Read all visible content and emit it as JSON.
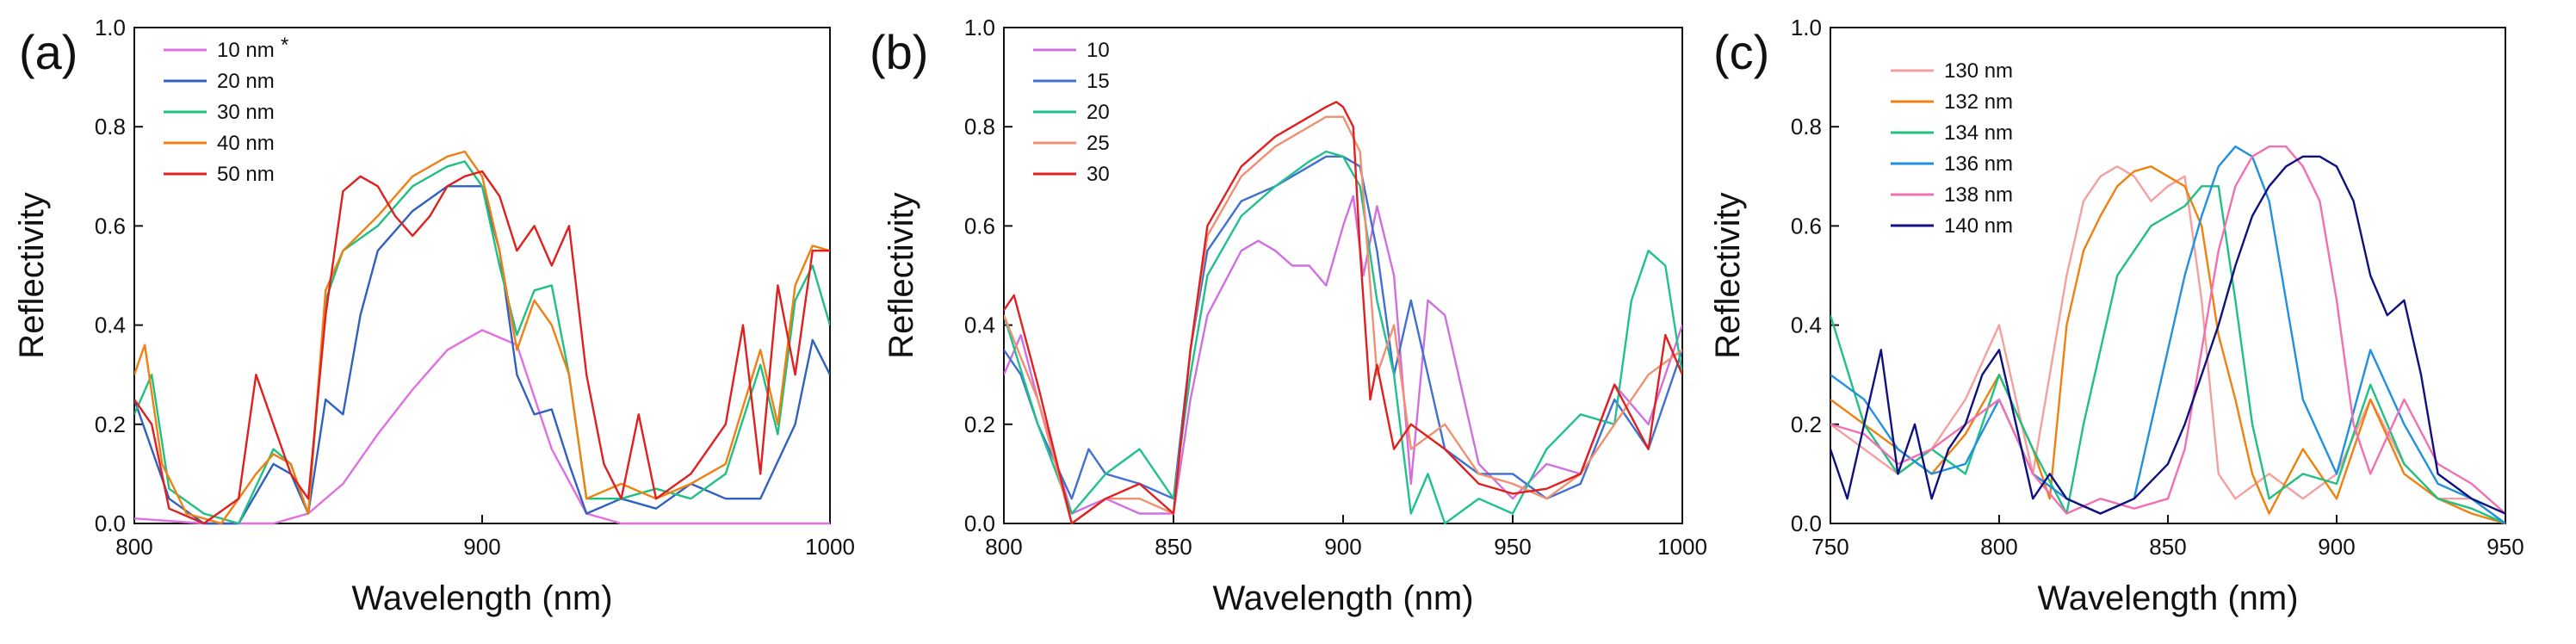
{
  "chart_data": [
    {
      "type": "line",
      "panel": "(a)",
      "xlabel": "Wavelength (nm)",
      "ylabel": "Reflectivity",
      "xlim": [
        800,
        1000
      ],
      "ylim": [
        0,
        1.0
      ],
      "xticks": [
        "800",
        "900",
        "1000"
      ],
      "xtick_values": [
        800,
        900,
        1000
      ],
      "yticks": [
        "0.0",
        "0.2",
        "0.4",
        "0.6",
        "0.8",
        "1.0"
      ],
      "ytick_values": [
        0,
        0.2,
        0.4,
        0.6,
        0.8,
        1.0
      ],
      "legend_position": "top-left",
      "series": [
        {
          "name": "10 nm",
          "marker": "*",
          "color": "#e070e0",
          "x": [
            800,
            820,
            840,
            850,
            860,
            870,
            880,
            890,
            900,
            910,
            920,
            930,
            940,
            960,
            980,
            1000
          ],
          "y": [
            0.01,
            0.0,
            0.0,
            0.02,
            0.08,
            0.18,
            0.27,
            0.35,
            0.39,
            0.36,
            0.15,
            0.02,
            0.0,
            0.0,
            0.0,
            0.0
          ]
        },
        {
          "name": "20 nm",
          "color": "#3060c0",
          "x": [
            800,
            810,
            820,
            830,
            840,
            845,
            850,
            855,
            860,
            865,
            870,
            880,
            890,
            900,
            905,
            910,
            915,
            920,
            925,
            930,
            940,
            950,
            960,
            970,
            980,
            990,
            995,
            1000
          ],
          "y": [
            0.25,
            0.05,
            0.0,
            0.0,
            0.12,
            0.1,
            0.02,
            0.25,
            0.22,
            0.42,
            0.55,
            0.63,
            0.68,
            0.68,
            0.55,
            0.3,
            0.22,
            0.23,
            0.12,
            0.02,
            0.05,
            0.03,
            0.08,
            0.05,
            0.05,
            0.2,
            0.37,
            0.3
          ]
        },
        {
          "name": "30 nm",
          "color": "#20c080",
          "x": [
            800,
            805,
            810,
            820,
            830,
            840,
            845,
            850,
            855,
            860,
            870,
            880,
            890,
            895,
            900,
            905,
            910,
            915,
            920,
            925,
            930,
            940,
            950,
            960,
            970,
            980,
            985,
            990,
            995,
            1000
          ],
          "y": [
            0.22,
            0.3,
            0.07,
            0.02,
            0.0,
            0.15,
            0.12,
            0.02,
            0.45,
            0.55,
            0.6,
            0.68,
            0.72,
            0.73,
            0.68,
            0.52,
            0.38,
            0.47,
            0.48,
            0.3,
            0.05,
            0.05,
            0.07,
            0.05,
            0.1,
            0.32,
            0.18,
            0.45,
            0.52,
            0.4
          ]
        },
        {
          "name": "40 nm",
          "color": "#f08010",
          "x": [
            800,
            803,
            808,
            815,
            825,
            835,
            840,
            845,
            850,
            855,
            860,
            870,
            880,
            890,
            895,
            900,
            905,
            910,
            915,
            920,
            925,
            930,
            940,
            950,
            960,
            970,
            980,
            985,
            990,
            995,
            1000
          ],
          "y": [
            0.3,
            0.36,
            0.12,
            0.02,
            0.0,
            0.1,
            0.14,
            0.12,
            0.02,
            0.47,
            0.55,
            0.62,
            0.7,
            0.74,
            0.75,
            0.7,
            0.55,
            0.35,
            0.45,
            0.4,
            0.3,
            0.05,
            0.08,
            0.05,
            0.08,
            0.12,
            0.35,
            0.2,
            0.48,
            0.56,
            0.55
          ]
        },
        {
          "name": "50 nm",
          "color": "#e02020",
          "x": [
            800,
            805,
            810,
            820,
            830,
            835,
            840,
            845,
            850,
            855,
            860,
            865,
            870,
            875,
            880,
            885,
            890,
            895,
            900,
            905,
            910,
            915,
            920,
            925,
            930,
            935,
            940,
            945,
            950,
            960,
            970,
            975,
            980,
            985,
            990,
            995,
            1000
          ],
          "y": [
            0.25,
            0.2,
            0.03,
            0.0,
            0.05,
            0.3,
            0.2,
            0.1,
            0.05,
            0.42,
            0.67,
            0.7,
            0.68,
            0.62,
            0.58,
            0.62,
            0.68,
            0.7,
            0.71,
            0.66,
            0.55,
            0.6,
            0.52,
            0.6,
            0.3,
            0.12,
            0.05,
            0.22,
            0.05,
            0.1,
            0.2,
            0.4,
            0.1,
            0.48,
            0.3,
            0.55,
            0.55
          ]
        }
      ]
    },
    {
      "type": "line",
      "panel": "(b)",
      "xlabel": "Wavelength (nm)",
      "ylabel": "Reflectivity",
      "xlim": [
        800,
        1000
      ],
      "ylim": [
        0,
        1.0
      ],
      "xticks": [
        "800",
        "850",
        "900",
        "950",
        "1000"
      ],
      "xtick_values": [
        800,
        850,
        900,
        950,
        1000
      ],
      "yticks": [
        "0.0",
        "0.2",
        "0.4",
        "0.6",
        "0.8",
        "1.0"
      ],
      "ytick_values": [
        0,
        0.2,
        0.4,
        0.6,
        0.8,
        1.0
      ],
      "legend_position": "top-left",
      "series": [
        {
          "name": "10",
          "color": "#d070e0",
          "x": [
            800,
            805,
            810,
            820,
            830,
            840,
            850,
            855,
            860,
            870,
            875,
            880,
            885,
            890,
            895,
            900,
            903,
            906,
            910,
            915,
            920,
            925,
            930,
            940,
            950,
            960,
            970,
            980,
            990,
            1000
          ],
          "y": [
            0.3,
            0.38,
            0.25,
            0.02,
            0.05,
            0.02,
            0.02,
            0.25,
            0.42,
            0.55,
            0.57,
            0.55,
            0.52,
            0.52,
            0.48,
            0.6,
            0.66,
            0.5,
            0.64,
            0.5,
            0.08,
            0.45,
            0.42,
            0.12,
            0.05,
            0.12,
            0.1,
            0.28,
            0.2,
            0.4
          ]
        },
        {
          "name": "15",
          "color": "#4070d0",
          "x": [
            800,
            805,
            810,
            820,
            825,
            830,
            840,
            850,
            855,
            860,
            870,
            880,
            890,
            895,
            900,
            905,
            910,
            915,
            920,
            930,
            940,
            950,
            960,
            970,
            980,
            990,
            1000
          ],
          "y": [
            0.35,
            0.3,
            0.2,
            0.05,
            0.15,
            0.1,
            0.08,
            0.05,
            0.35,
            0.55,
            0.65,
            0.68,
            0.72,
            0.74,
            0.74,
            0.72,
            0.55,
            0.3,
            0.45,
            0.15,
            0.1,
            0.1,
            0.05,
            0.08,
            0.25,
            0.15,
            0.35
          ]
        },
        {
          "name": "20",
          "color": "#20c090",
          "x": [
            800,
            810,
            820,
            830,
            840,
            850,
            855,
            860,
            870,
            880,
            890,
            895,
            900,
            905,
            910,
            915,
            920,
            925,
            930,
            940,
            950,
            960,
            970,
            980,
            985,
            990,
            995,
            1000
          ],
          "y": [
            0.42,
            0.2,
            0.02,
            0.1,
            0.15,
            0.05,
            0.3,
            0.5,
            0.62,
            0.68,
            0.73,
            0.75,
            0.74,
            0.68,
            0.45,
            0.3,
            0.02,
            0.1,
            0.0,
            0.05,
            0.02,
            0.15,
            0.22,
            0.2,
            0.45,
            0.55,
            0.52,
            0.3
          ]
        },
        {
          "name": "25",
          "color": "#f09070",
          "x": [
            800,
            810,
            820,
            830,
            840,
            850,
            855,
            860,
            870,
            880,
            890,
            895,
            900,
            905,
            910,
            915,
            920,
            930,
            940,
            950,
            960,
            970,
            980,
            990,
            1000
          ],
          "y": [
            0.42,
            0.25,
            0.0,
            0.05,
            0.05,
            0.02,
            0.35,
            0.58,
            0.7,
            0.76,
            0.8,
            0.82,
            0.82,
            0.75,
            0.3,
            0.4,
            0.15,
            0.2,
            0.1,
            0.08,
            0.05,
            0.1,
            0.2,
            0.3,
            0.35
          ]
        },
        {
          "name": "30",
          "color": "#e02020",
          "x": [
            800,
            803,
            810,
            820,
            830,
            840,
            850,
            855,
            860,
            870,
            880,
            890,
            895,
            898,
            900,
            903,
            905,
            908,
            910,
            915,
            920,
            930,
            940,
            950,
            960,
            970,
            980,
            990,
            995,
            1000
          ],
          "y": [
            0.43,
            0.46,
            0.28,
            0.0,
            0.05,
            0.08,
            0.02,
            0.35,
            0.6,
            0.72,
            0.78,
            0.82,
            0.84,
            0.85,
            0.84,
            0.8,
            0.55,
            0.25,
            0.32,
            0.15,
            0.2,
            0.15,
            0.08,
            0.06,
            0.07,
            0.1,
            0.28,
            0.15,
            0.38,
            0.3
          ]
        }
      ]
    },
    {
      "type": "line",
      "panel": "(c)",
      "xlabel": "Wavelength (nm)",
      "ylabel": "Reflectivity",
      "xlim": [
        750,
        950
      ],
      "ylim": [
        0,
        1.0
      ],
      "xticks": [
        "750",
        "800",
        "850",
        "900",
        "950"
      ],
      "xtick_values": [
        750,
        800,
        850,
        900,
        950
      ],
      "yticks": [
        "0.0",
        "0.2",
        "0.4",
        "0.6",
        "0.8",
        "1.0"
      ],
      "ytick_values": [
        0,
        0.2,
        0.4,
        0.6,
        0.8,
        1.0
      ],
      "legend_position": "top-left",
      "series": [
        {
          "name": "130 nm",
          "color": "#f4a0a0",
          "x": [
            750,
            760,
            770,
            780,
            790,
            800,
            810,
            815,
            820,
            825,
            830,
            835,
            840,
            845,
            850,
            855,
            860,
            865,
            870,
            880,
            890,
            900,
            910,
            920,
            930,
            940,
            950
          ],
          "y": [
            0.2,
            0.15,
            0.1,
            0.15,
            0.25,
            0.4,
            0.1,
            0.3,
            0.5,
            0.65,
            0.7,
            0.72,
            0.7,
            0.65,
            0.68,
            0.7,
            0.45,
            0.1,
            0.05,
            0.1,
            0.05,
            0.1,
            0.25,
            0.12,
            0.05,
            0.05,
            0.0
          ]
        },
        {
          "name": "132 nm",
          "color": "#f08010",
          "x": [
            750,
            760,
            770,
            780,
            790,
            800,
            810,
            815,
            820,
            825,
            830,
            835,
            840,
            845,
            850,
            855,
            860,
            865,
            870,
            875,
            880,
            890,
            900,
            910,
            920,
            930,
            940,
            950
          ],
          "y": [
            0.25,
            0.2,
            0.15,
            0.1,
            0.18,
            0.3,
            0.15,
            0.05,
            0.4,
            0.55,
            0.62,
            0.68,
            0.71,
            0.72,
            0.7,
            0.68,
            0.6,
            0.38,
            0.25,
            0.1,
            0.02,
            0.15,
            0.05,
            0.25,
            0.1,
            0.05,
            0.02,
            0.0
          ]
        },
        {
          "name": "134 nm",
          "color": "#20c080",
          "x": [
            750,
            760,
            770,
            780,
            790,
            800,
            810,
            820,
            825,
            830,
            835,
            840,
            845,
            850,
            855,
            860,
            865,
            870,
            875,
            880,
            890,
            900,
            910,
            920,
            930,
            940,
            950
          ],
          "y": [
            0.42,
            0.2,
            0.1,
            0.15,
            0.1,
            0.3,
            0.15,
            0.02,
            0.2,
            0.35,
            0.5,
            0.55,
            0.6,
            0.62,
            0.64,
            0.68,
            0.68,
            0.45,
            0.2,
            0.05,
            0.1,
            0.08,
            0.28,
            0.12,
            0.05,
            0.03,
            0.0
          ]
        },
        {
          "name": "136 nm",
          "color": "#2090e0",
          "x": [
            750,
            760,
            770,
            780,
            790,
            800,
            810,
            820,
            830,
            840,
            845,
            850,
            855,
            860,
            865,
            870,
            875,
            880,
            885,
            890,
            900,
            910,
            920,
            930,
            940,
            950
          ],
          "y": [
            0.3,
            0.25,
            0.15,
            0.1,
            0.12,
            0.25,
            0.1,
            0.05,
            0.02,
            0.05,
            0.2,
            0.35,
            0.5,
            0.62,
            0.72,
            0.76,
            0.74,
            0.65,
            0.45,
            0.25,
            0.1,
            0.35,
            0.2,
            0.08,
            0.05,
            0.0
          ]
        },
        {
          "name": "138 nm",
          "color": "#f070b0",
          "x": [
            750,
            760,
            770,
            780,
            790,
            800,
            810,
            820,
            830,
            840,
            850,
            855,
            860,
            865,
            870,
            875,
            880,
            885,
            890,
            895,
            900,
            905,
            910,
            920,
            930,
            940,
            950
          ],
          "y": [
            0.2,
            0.18,
            0.12,
            0.15,
            0.2,
            0.25,
            0.1,
            0.02,
            0.05,
            0.03,
            0.05,
            0.15,
            0.35,
            0.55,
            0.68,
            0.74,
            0.76,
            0.76,
            0.72,
            0.65,
            0.45,
            0.2,
            0.1,
            0.25,
            0.12,
            0.08,
            0.02
          ]
        },
        {
          "name": "140 nm",
          "color": "#101080",
          "x": [
            750,
            755,
            760,
            765,
            770,
            775,
            780,
            785,
            790,
            795,
            800,
            805,
            810,
            815,
            820,
            830,
            840,
            850,
            855,
            860,
            865,
            870,
            875,
            880,
            885,
            890,
            895,
            900,
            905,
            910,
            915,
            920,
            925,
            930,
            940,
            950
          ],
          "y": [
            0.15,
            0.05,
            0.2,
            0.35,
            0.1,
            0.2,
            0.05,
            0.15,
            0.2,
            0.3,
            0.35,
            0.2,
            0.05,
            0.1,
            0.05,
            0.02,
            0.05,
            0.12,
            0.2,
            0.3,
            0.4,
            0.52,
            0.62,
            0.68,
            0.72,
            0.74,
            0.74,
            0.72,
            0.65,
            0.5,
            0.42,
            0.45,
            0.3,
            0.1,
            0.05,
            0.02
          ]
        }
      ]
    }
  ]
}
